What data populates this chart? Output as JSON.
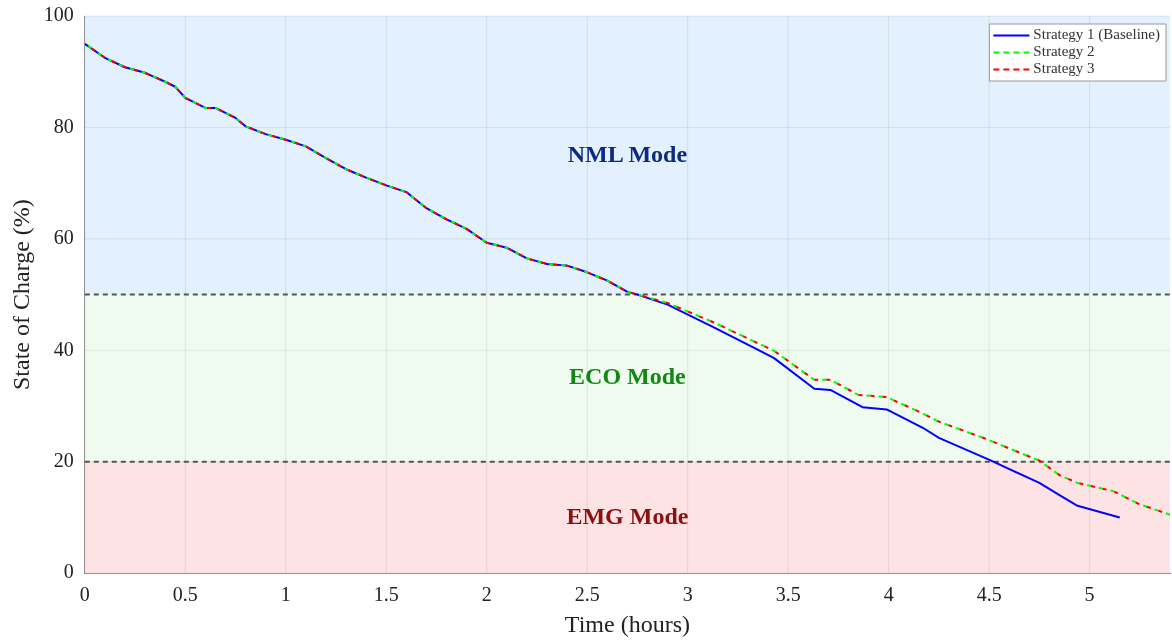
{
  "chart_data": {
    "type": "line",
    "xlabel": "Time (hours)",
    "ylabel": "State of Charge (%)",
    "xlim": [
      0,
      5.4
    ],
    "xticks": [
      0,
      0.5,
      1,
      1.5,
      2,
      2.5,
      3,
      3.5,
      4,
      4.5,
      5
    ],
    "ylim": [
      0,
      100
    ],
    "yticks": [
      0,
      20,
      40,
      60,
      80,
      100
    ],
    "grid": true,
    "legend": "top right",
    "marker": "none",
    "bands": [
      {
        "axis": "y",
        "from": 50,
        "to": 100,
        "label": "NML Mode",
        "color": "#e3f0fd"
      },
      {
        "axis": "y",
        "from": 20,
        "to": 50,
        "label": "ECO Mode",
        "color": "#effbef"
      },
      {
        "axis": "y",
        "from": 0,
        "to": 20,
        "label": "EMG Mode",
        "color": "#fde3e4"
      }
    ],
    "ref_lines": [
      {
        "axis": "y",
        "value": 50,
        "color": "#555555",
        "line_style": "dashed"
      },
      {
        "axis": "y",
        "value": 20,
        "color": "#555555",
        "line_style": "dashed"
      }
    ],
    "series": [
      {
        "name": "Strategy 1 (Baseline)",
        "color": "#0000ff",
        "line_style": "solid",
        "x": [
          0,
          0.1,
          0.2,
          0.3,
          0.4,
          0.45,
          0.5,
          0.6,
          0.65,
          0.75,
          0.8,
          0.9,
          1.0,
          1.1,
          1.2,
          1.3,
          1.4,
          1.5,
          1.6,
          1.7,
          1.8,
          1.9,
          2.0,
          2.1,
          2.2,
          2.3,
          2.4,
          2.5,
          2.6,
          2.7,
          2.75,
          2.9,
          3.13,
          3.43,
          3.63,
          3.71,
          3.87,
          3.99,
          4.17,
          4.25,
          4.51,
          4.75,
          4.85,
          4.94,
          5.15
        ],
        "values": [
          95,
          92.5,
          90.8,
          89.8,
          88.2,
          87.3,
          85.3,
          83.5,
          83.5,
          81.7,
          80.2,
          78.8,
          77.8,
          76.6,
          74.5,
          72.5,
          71,
          69.6,
          68.4,
          65.5,
          63.5,
          61.8,
          59.3,
          58.4,
          56.5,
          55.5,
          55.2,
          54,
          52.5,
          50.5,
          50,
          48.2,
          44.1,
          38.6,
          33.1,
          32.9,
          29.8,
          29.4,
          26.1,
          24.3,
          20.2,
          16.2,
          14.0,
          12.1,
          10
        ]
      },
      {
        "name": "Strategy 2",
        "color": "#00ff00",
        "line_style": "dashed",
        "x": [
          0,
          0.1,
          0.2,
          0.3,
          0.4,
          0.45,
          0.5,
          0.6,
          0.65,
          0.75,
          0.8,
          0.9,
          1.0,
          1.1,
          1.2,
          1.3,
          1.4,
          1.5,
          1.6,
          1.7,
          1.8,
          1.9,
          2.0,
          2.1,
          2.2,
          2.3,
          2.4,
          2.5,
          2.6,
          2.7,
          2.75,
          2.9,
          3.13,
          3.43,
          3.63,
          3.71,
          3.85,
          3.99,
          4.15,
          4.25,
          4.47,
          4.75,
          4.85,
          4.94,
          5.12,
          5.24,
          5.4
        ],
        "values": [
          95,
          92.5,
          90.8,
          89.8,
          88.2,
          87.3,
          85.3,
          83.5,
          83.5,
          81.7,
          80.2,
          78.8,
          77.8,
          76.6,
          74.5,
          72.5,
          71,
          69.6,
          68.4,
          65.5,
          63.5,
          61.8,
          59.3,
          58.4,
          56.5,
          55.5,
          55.2,
          54,
          52.5,
          50.5,
          50,
          48.5,
          45,
          39.9,
          34.7,
          34.7,
          32,
          31.6,
          29,
          27.2,
          24.3,
          20.2,
          17.6,
          16.2,
          14.7,
          12.5,
          10.5
        ]
      },
      {
        "name": "Strategy 3",
        "color": "#ff0000",
        "line_style": "dashed",
        "x": [
          0,
          0.1,
          0.2,
          0.3,
          0.4,
          0.45,
          0.5,
          0.6,
          0.65,
          0.75,
          0.8,
          0.9,
          1.0,
          1.1,
          1.2,
          1.3,
          1.4,
          1.5,
          1.6,
          1.7,
          1.8,
          1.9,
          2.0,
          2.1,
          2.2,
          2.3,
          2.4,
          2.5,
          2.6,
          2.7,
          2.75,
          2.9,
          3.13,
          3.43,
          3.63,
          3.71,
          3.85,
          3.99,
          4.15,
          4.25,
          4.47,
          4.75,
          4.85,
          4.94,
          5.12,
          5.24,
          5.4
        ],
        "values": [
          95,
          92.5,
          90.8,
          89.8,
          88.2,
          87.3,
          85.3,
          83.5,
          83.5,
          81.7,
          80.2,
          78.8,
          77.8,
          76.6,
          74.5,
          72.5,
          71,
          69.6,
          68.4,
          65.5,
          63.5,
          61.8,
          59.3,
          58.4,
          56.5,
          55.5,
          55.2,
          54,
          52.5,
          50.5,
          50,
          48.5,
          45,
          39.9,
          34.7,
          34.7,
          32,
          31.6,
          29,
          27.2,
          24.3,
          20.2,
          17.6,
          16.2,
          14.7,
          12.5,
          10.5
        ]
      }
    ]
  }
}
